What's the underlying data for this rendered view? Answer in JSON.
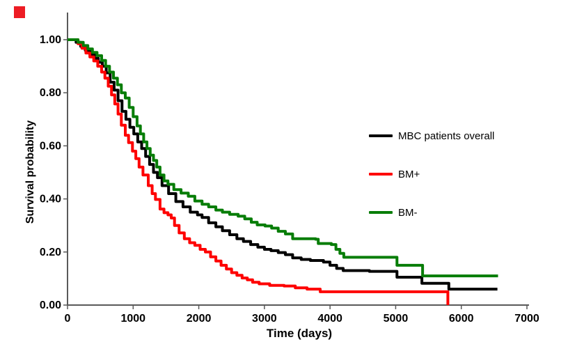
{
  "annotation_marker": {
    "color": "#ed1c24"
  },
  "chart_data": {
    "type": "line",
    "style": "kaplan-meier-step",
    "title": "",
    "xlabel": "Time (days)",
    "ylabel": "Survival probability",
    "xlim": [
      0,
      7000
    ],
    "ylim": [
      0,
      1.0
    ],
    "x_tick_values": [
      0,
      1000,
      2000,
      3000,
      4000,
      5000,
      6000,
      7000
    ],
    "x_tick_labels": [
      "0",
      "1000",
      "2000",
      "3000",
      "4000",
      "5000",
      "6000",
      "7000"
    ],
    "y_tick_values": [
      1.0,
      0.8,
      0.6,
      0.4,
      0.2,
      0.0
    ],
    "y_tick_labels": [
      "1.00",
      "0.80",
      "0.60",
      "0.40",
      "0.20",
      "0.00"
    ],
    "grid": false,
    "legend_position": "right-center",
    "axis_color": "#595959",
    "series": [
      {
        "name": "MBC patients overall",
        "color": "#000000",
        "points": [
          [
            0,
            1.0
          ],
          [
            70,
            1.0
          ],
          [
            130,
            0.99
          ],
          [
            200,
            0.975
          ],
          [
            270,
            0.96
          ],
          [
            340,
            0.945
          ],
          [
            410,
            0.93
          ],
          [
            470,
            0.915
          ],
          [
            530,
            0.9
          ],
          [
            590,
            0.875
          ],
          [
            650,
            0.84
          ],
          [
            710,
            0.81
          ],
          [
            770,
            0.77
          ],
          [
            830,
            0.73
          ],
          [
            890,
            0.7
          ],
          [
            950,
            0.67
          ],
          [
            1010,
            0.645
          ],
          [
            1070,
            0.615
          ],
          [
            1130,
            0.59
          ],
          [
            1190,
            0.56
          ],
          [
            1250,
            0.53
          ],
          [
            1310,
            0.5
          ],
          [
            1370,
            0.48
          ],
          [
            1440,
            0.45
          ],
          [
            1540,
            0.42
          ],
          [
            1650,
            0.39
          ],
          [
            1760,
            0.37
          ],
          [
            1870,
            0.35
          ],
          [
            1980,
            0.34
          ],
          [
            2050,
            0.33
          ],
          [
            2150,
            0.31
          ],
          [
            2260,
            0.295
          ],
          [
            2360,
            0.28
          ],
          [
            2470,
            0.265
          ],
          [
            2580,
            0.25
          ],
          [
            2680,
            0.24
          ],
          [
            2790,
            0.228
          ],
          [
            2900,
            0.218
          ],
          [
            3000,
            0.21
          ],
          [
            3100,
            0.205
          ],
          [
            3210,
            0.198
          ],
          [
            3320,
            0.19
          ],
          [
            3430,
            0.178
          ],
          [
            3560,
            0.172
          ],
          [
            3700,
            0.168
          ],
          [
            3900,
            0.162
          ],
          [
            4000,
            0.15
          ],
          [
            4100,
            0.138
          ],
          [
            4200,
            0.13
          ],
          [
            4600,
            0.127
          ],
          [
            5020,
            0.105
          ],
          [
            5400,
            0.082
          ],
          [
            5810,
            0.06
          ],
          [
            6550,
            0.06
          ]
        ]
      },
      {
        "name": "BM+",
        "color": "#fe0000",
        "points": [
          [
            0,
            1.0
          ],
          [
            90,
            1.0
          ],
          [
            160,
            0.985
          ],
          [
            220,
            0.968
          ],
          [
            280,
            0.95
          ],
          [
            340,
            0.935
          ],
          [
            400,
            0.92
          ],
          [
            460,
            0.9
          ],
          [
            520,
            0.878
          ],
          [
            570,
            0.855
          ],
          [
            620,
            0.825
          ],
          [
            670,
            0.792
          ],
          [
            720,
            0.758
          ],
          [
            770,
            0.72
          ],
          [
            820,
            0.678
          ],
          [
            880,
            0.64
          ],
          [
            930,
            0.612
          ],
          [
            990,
            0.58
          ],
          [
            1040,
            0.552
          ],
          [
            1090,
            0.52
          ],
          [
            1150,
            0.49
          ],
          [
            1230,
            0.45
          ],
          [
            1290,
            0.42
          ],
          [
            1340,
            0.398
          ],
          [
            1410,
            0.362
          ],
          [
            1470,
            0.348
          ],
          [
            1530,
            0.34
          ],
          [
            1580,
            0.328
          ],
          [
            1630,
            0.3
          ],
          [
            1700,
            0.272
          ],
          [
            1780,
            0.25
          ],
          [
            1860,
            0.235
          ],
          [
            1940,
            0.225
          ],
          [
            2020,
            0.21
          ],
          [
            2100,
            0.2
          ],
          [
            2180,
            0.182
          ],
          [
            2260,
            0.166
          ],
          [
            2340,
            0.15
          ],
          [
            2420,
            0.136
          ],
          [
            2500,
            0.122
          ],
          [
            2580,
            0.112
          ],
          [
            2660,
            0.102
          ],
          [
            2740,
            0.095
          ],
          [
            2820,
            0.086
          ],
          [
            2920,
            0.08
          ],
          [
            3080,
            0.074
          ],
          [
            3300,
            0.072
          ],
          [
            3470,
            0.065
          ],
          [
            3650,
            0.06
          ],
          [
            3850,
            0.05
          ],
          [
            5795,
            0.05
          ],
          [
            5795,
            0.0
          ]
        ]
      },
      {
        "name": "BM-",
        "color": "#077d07",
        "points": [
          [
            0,
            1.0
          ],
          [
            90,
            1.0
          ],
          [
            160,
            0.99
          ],
          [
            240,
            0.978
          ],
          [
            310,
            0.965
          ],
          [
            380,
            0.952
          ],
          [
            450,
            0.94
          ],
          [
            520,
            0.922
          ],
          [
            580,
            0.9
          ],
          [
            640,
            0.878
          ],
          [
            700,
            0.855
          ],
          [
            760,
            0.83
          ],
          [
            820,
            0.8
          ],
          [
            880,
            0.78
          ],
          [
            940,
            0.745
          ],
          [
            1000,
            0.71
          ],
          [
            1060,
            0.675
          ],
          [
            1110,
            0.645
          ],
          [
            1160,
            0.615
          ],
          [
            1210,
            0.59
          ],
          [
            1260,
            0.565
          ],
          [
            1310,
            0.545
          ],
          [
            1360,
            0.52
          ],
          [
            1410,
            0.49
          ],
          [
            1470,
            0.468
          ],
          [
            1530,
            0.455
          ],
          [
            1620,
            0.435
          ],
          [
            1730,
            0.422
          ],
          [
            1840,
            0.41
          ],
          [
            1940,
            0.392
          ],
          [
            2050,
            0.38
          ],
          [
            2150,
            0.37
          ],
          [
            2260,
            0.358
          ],
          [
            2360,
            0.35
          ],
          [
            2470,
            0.342
          ],
          [
            2600,
            0.335
          ],
          [
            2700,
            0.325
          ],
          [
            2800,
            0.312
          ],
          [
            2890,
            0.302
          ],
          [
            3010,
            0.298
          ],
          [
            3110,
            0.29
          ],
          [
            3210,
            0.278
          ],
          [
            3320,
            0.268
          ],
          [
            3430,
            0.25
          ],
          [
            3780,
            0.248
          ],
          [
            3820,
            0.232
          ],
          [
            4020,
            0.228
          ],
          [
            4090,
            0.21
          ],
          [
            4150,
            0.195
          ],
          [
            4210,
            0.18
          ],
          [
            5020,
            0.15
          ],
          [
            5410,
            0.11
          ],
          [
            6560,
            0.11
          ]
        ]
      }
    ]
  }
}
